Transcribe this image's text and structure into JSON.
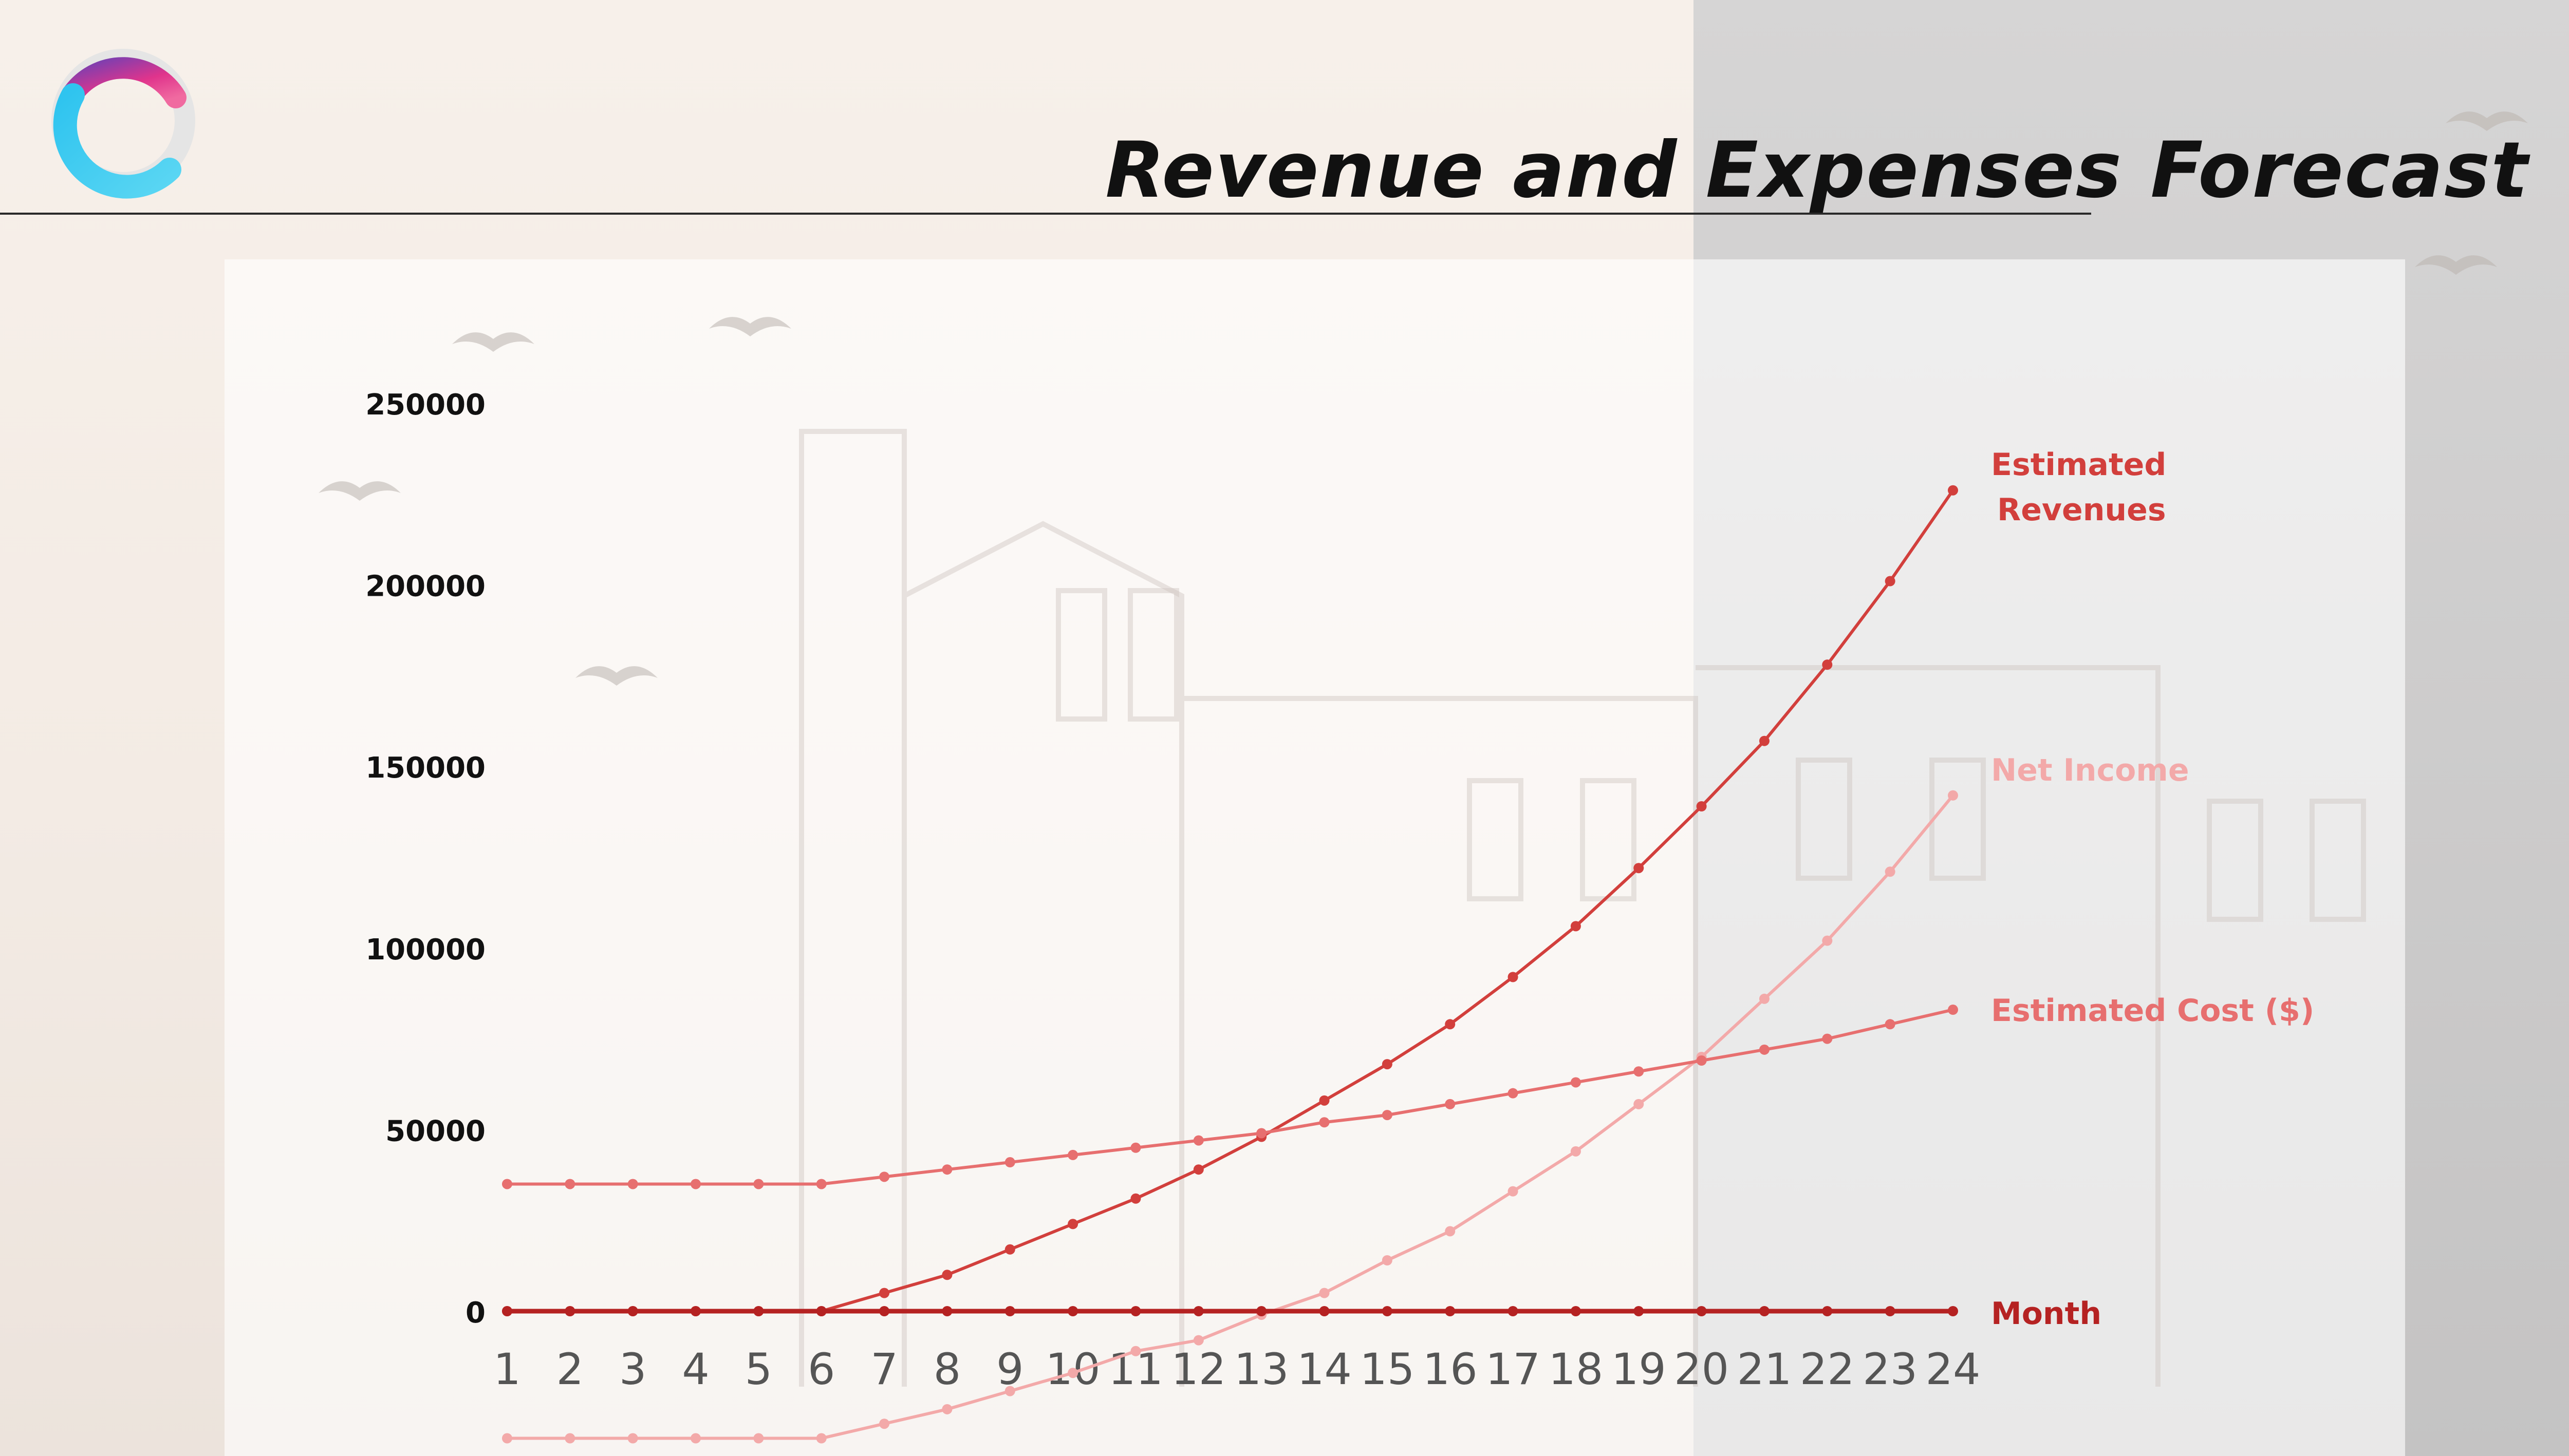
{
  "page": {
    "title": "Revenue and Expenses Forecast"
  },
  "colors": {
    "revenue": "#d23f3c",
    "cost": "#e76f6f",
    "net_income": "#f3a9a9",
    "month": "#b52222",
    "title": "#111111"
  },
  "chart_data": {
    "type": "line",
    "x": [
      1,
      2,
      3,
      4,
      5,
      6,
      7,
      8,
      9,
      10,
      11,
      12,
      13,
      14,
      15,
      16,
      17,
      18,
      19,
      20,
      21,
      22,
      23,
      24
    ],
    "categories": [
      "1",
      "2",
      "3",
      "4",
      "5",
      "6",
      "7",
      "8",
      "9",
      "10",
      "11",
      "12",
      "13",
      "14",
      "15",
      "16",
      "17",
      "18",
      "19",
      "20",
      "21",
      "22",
      "23",
      "24"
    ],
    "y_ticks": [
      "250000",
      "200000",
      "150000",
      "100000",
      "50000",
      "0"
    ],
    "ylim": [
      -35000,
      250000
    ],
    "grid": false,
    "legend": "labels at right end of each line",
    "series": [
      {
        "name": "Estimated Revenues",
        "label_lines": [
          "Estimated",
          "Revenues"
        ],
        "color": "#d23f3c",
        "values": [
          0,
          0,
          0,
          0,
          0,
          0,
          5000,
          10000,
          17000,
          24000,
          31000,
          39000,
          48000,
          58000,
          68000,
          79000,
          92000,
          106000,
          122000,
          139000,
          157000,
          178000,
          201000,
          226000
        ]
      },
      {
        "name": "Net Income",
        "label_lines": [
          "Net Income"
        ],
        "color": "#f3a9a9",
        "values": [
          -35000,
          -35000,
          -35000,
          -35000,
          -35000,
          -35000,
          -31000,
          -27000,
          -22000,
          -17000,
          -11000,
          -8000,
          -1000,
          5000,
          14000,
          22000,
          33000,
          44000,
          57000,
          70000,
          86000,
          102000,
          121000,
          142000
        ]
      },
      {
        "name": "Estimated Cost ($)",
        "label_lines": [
          "Estimated Cost ($)"
        ],
        "color": "#e76f6f",
        "values": [
          35000,
          35000,
          35000,
          35000,
          35000,
          35000,
          37000,
          39000,
          41000,
          43000,
          45000,
          47000,
          49000,
          52000,
          54000,
          57000,
          60000,
          63000,
          66000,
          69000,
          72000,
          75000,
          79000,
          83000
        ]
      },
      {
        "name": "Month",
        "label_lines": [
          "Month"
        ],
        "color": "#b52222",
        "values": [
          0,
          0,
          0,
          0,
          0,
          0,
          0,
          0,
          0,
          0,
          0,
          0,
          0,
          0,
          0,
          0,
          0,
          0,
          0,
          0,
          0,
          0,
          0,
          0
        ]
      }
    ]
  }
}
